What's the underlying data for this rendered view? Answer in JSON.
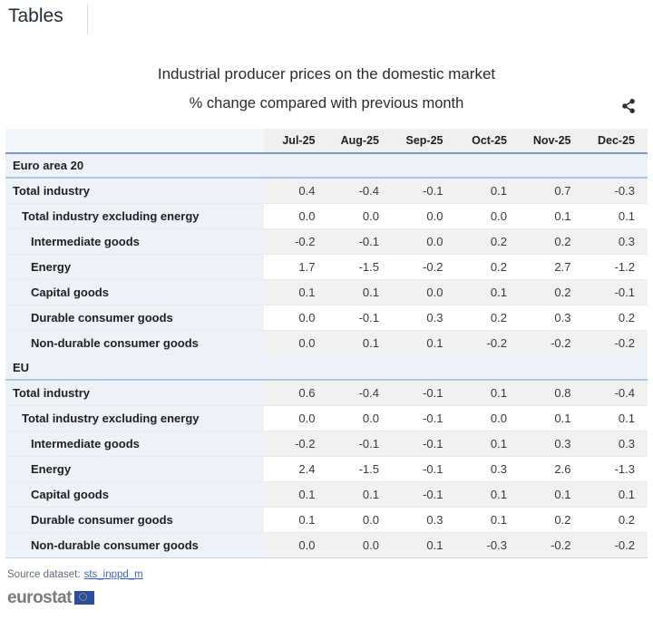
{
  "page": {
    "heading": "Tables"
  },
  "chart_data": {
    "type": "table",
    "title": "Industrial producer prices on the domestic market",
    "subtitle": "% change compared with previous month",
    "columns": [
      "Jul-25",
      "Aug-25",
      "Sep-25",
      "Oct-25",
      "Nov-25",
      "Dec-25"
    ],
    "sections": [
      {
        "name": "Euro area 20",
        "rows": [
          {
            "label": "Total industry",
            "indent": 0,
            "values": [
              "0.4",
              "-0.4",
              "-0.1",
              "0.1",
              "0.7",
              "-0.3"
            ]
          },
          {
            "label": "Total industry excluding energy",
            "indent": 1,
            "values": [
              "0.0",
              "0.0",
              "0.0",
              "0.0",
              "0.1",
              "0.1"
            ]
          },
          {
            "label": "Intermediate goods",
            "indent": 2,
            "values": [
              "-0.2",
              "-0.1",
              "0.0",
              "0.2",
              "0.2",
              "0.3"
            ]
          },
          {
            "label": "Energy",
            "indent": 2,
            "values": [
              "1.7",
              "-1.5",
              "-0.2",
              "0.2",
              "2.7",
              "-1.2"
            ]
          },
          {
            "label": "Capital goods",
            "indent": 2,
            "values": [
              "0.1",
              "0.1",
              "0.0",
              "0.1",
              "0.2",
              "-0.1"
            ]
          },
          {
            "label": "Durable consumer goods",
            "indent": 2,
            "values": [
              "0.0",
              "-0.1",
              "0.3",
              "0.2",
              "0.3",
              "0.2"
            ]
          },
          {
            "label": "Non-durable consumer goods",
            "indent": 2,
            "values": [
              "0.0",
              "0.1",
              "0.1",
              "-0.2",
              "-0.2",
              "-0.2"
            ]
          }
        ]
      },
      {
        "name": "EU",
        "rows": [
          {
            "label": "Total industry",
            "indent": 0,
            "values": [
              "0.6",
              "-0.4",
              "-0.1",
              "0.1",
              "0.8",
              "-0.4"
            ]
          },
          {
            "label": "Total industry excluding energy",
            "indent": 1,
            "values": [
              "0.0",
              "0.0",
              "-0.1",
              "0.0",
              "0.1",
              "0.1"
            ]
          },
          {
            "label": "Intermediate goods",
            "indent": 2,
            "values": [
              "-0.2",
              "-0.1",
              "-0.1",
              "0.1",
              "0.3",
              "0.3"
            ]
          },
          {
            "label": "Energy",
            "indent": 2,
            "values": [
              "2.4",
              "-1.5",
              "-0.1",
              "0.3",
              "2.6",
              "-1.3"
            ]
          },
          {
            "label": "Capital goods",
            "indent": 2,
            "values": [
              "0.1",
              "0.1",
              "-0.1",
              "0.1",
              "0.1",
              "0.1"
            ]
          },
          {
            "label": "Durable consumer goods",
            "indent": 2,
            "values": [
              "0.1",
              "0.0",
              "0.3",
              "0.1",
              "0.2",
              "0.2"
            ]
          },
          {
            "label": "Non-durable consumer goods",
            "indent": 2,
            "values": [
              "0.0",
              "0.0",
              "0.1",
              "-0.3",
              "-0.2",
              "-0.2"
            ]
          }
        ]
      }
    ],
    "layout": {
      "row_striping": "alternating from first data row",
      "legend": "none",
      "grid": "horizontal row separators"
    }
  },
  "icons": {
    "share": "share-icon",
    "eu_flag": "eu-flag-icon"
  },
  "footer": {
    "source_label": "Source dataset:",
    "source_link": "sts_inppd_m",
    "logo_text": "eurostat"
  },
  "colors": {
    "header_border_blue": "#7e97c3",
    "section_border_blue": "#b1c6e0",
    "section_bg": "#edf2f9",
    "label_cell_bg": "#edf2f9",
    "alt_value_cell_bg": "#f1f1ef",
    "header_row_bg": "#efefee",
    "link_blue": "#3b66c4",
    "eurostat_gray": "#7b7b7b",
    "flag_blue": "#2c4ea2",
    "star_yellow": "#f8cc0b"
  }
}
